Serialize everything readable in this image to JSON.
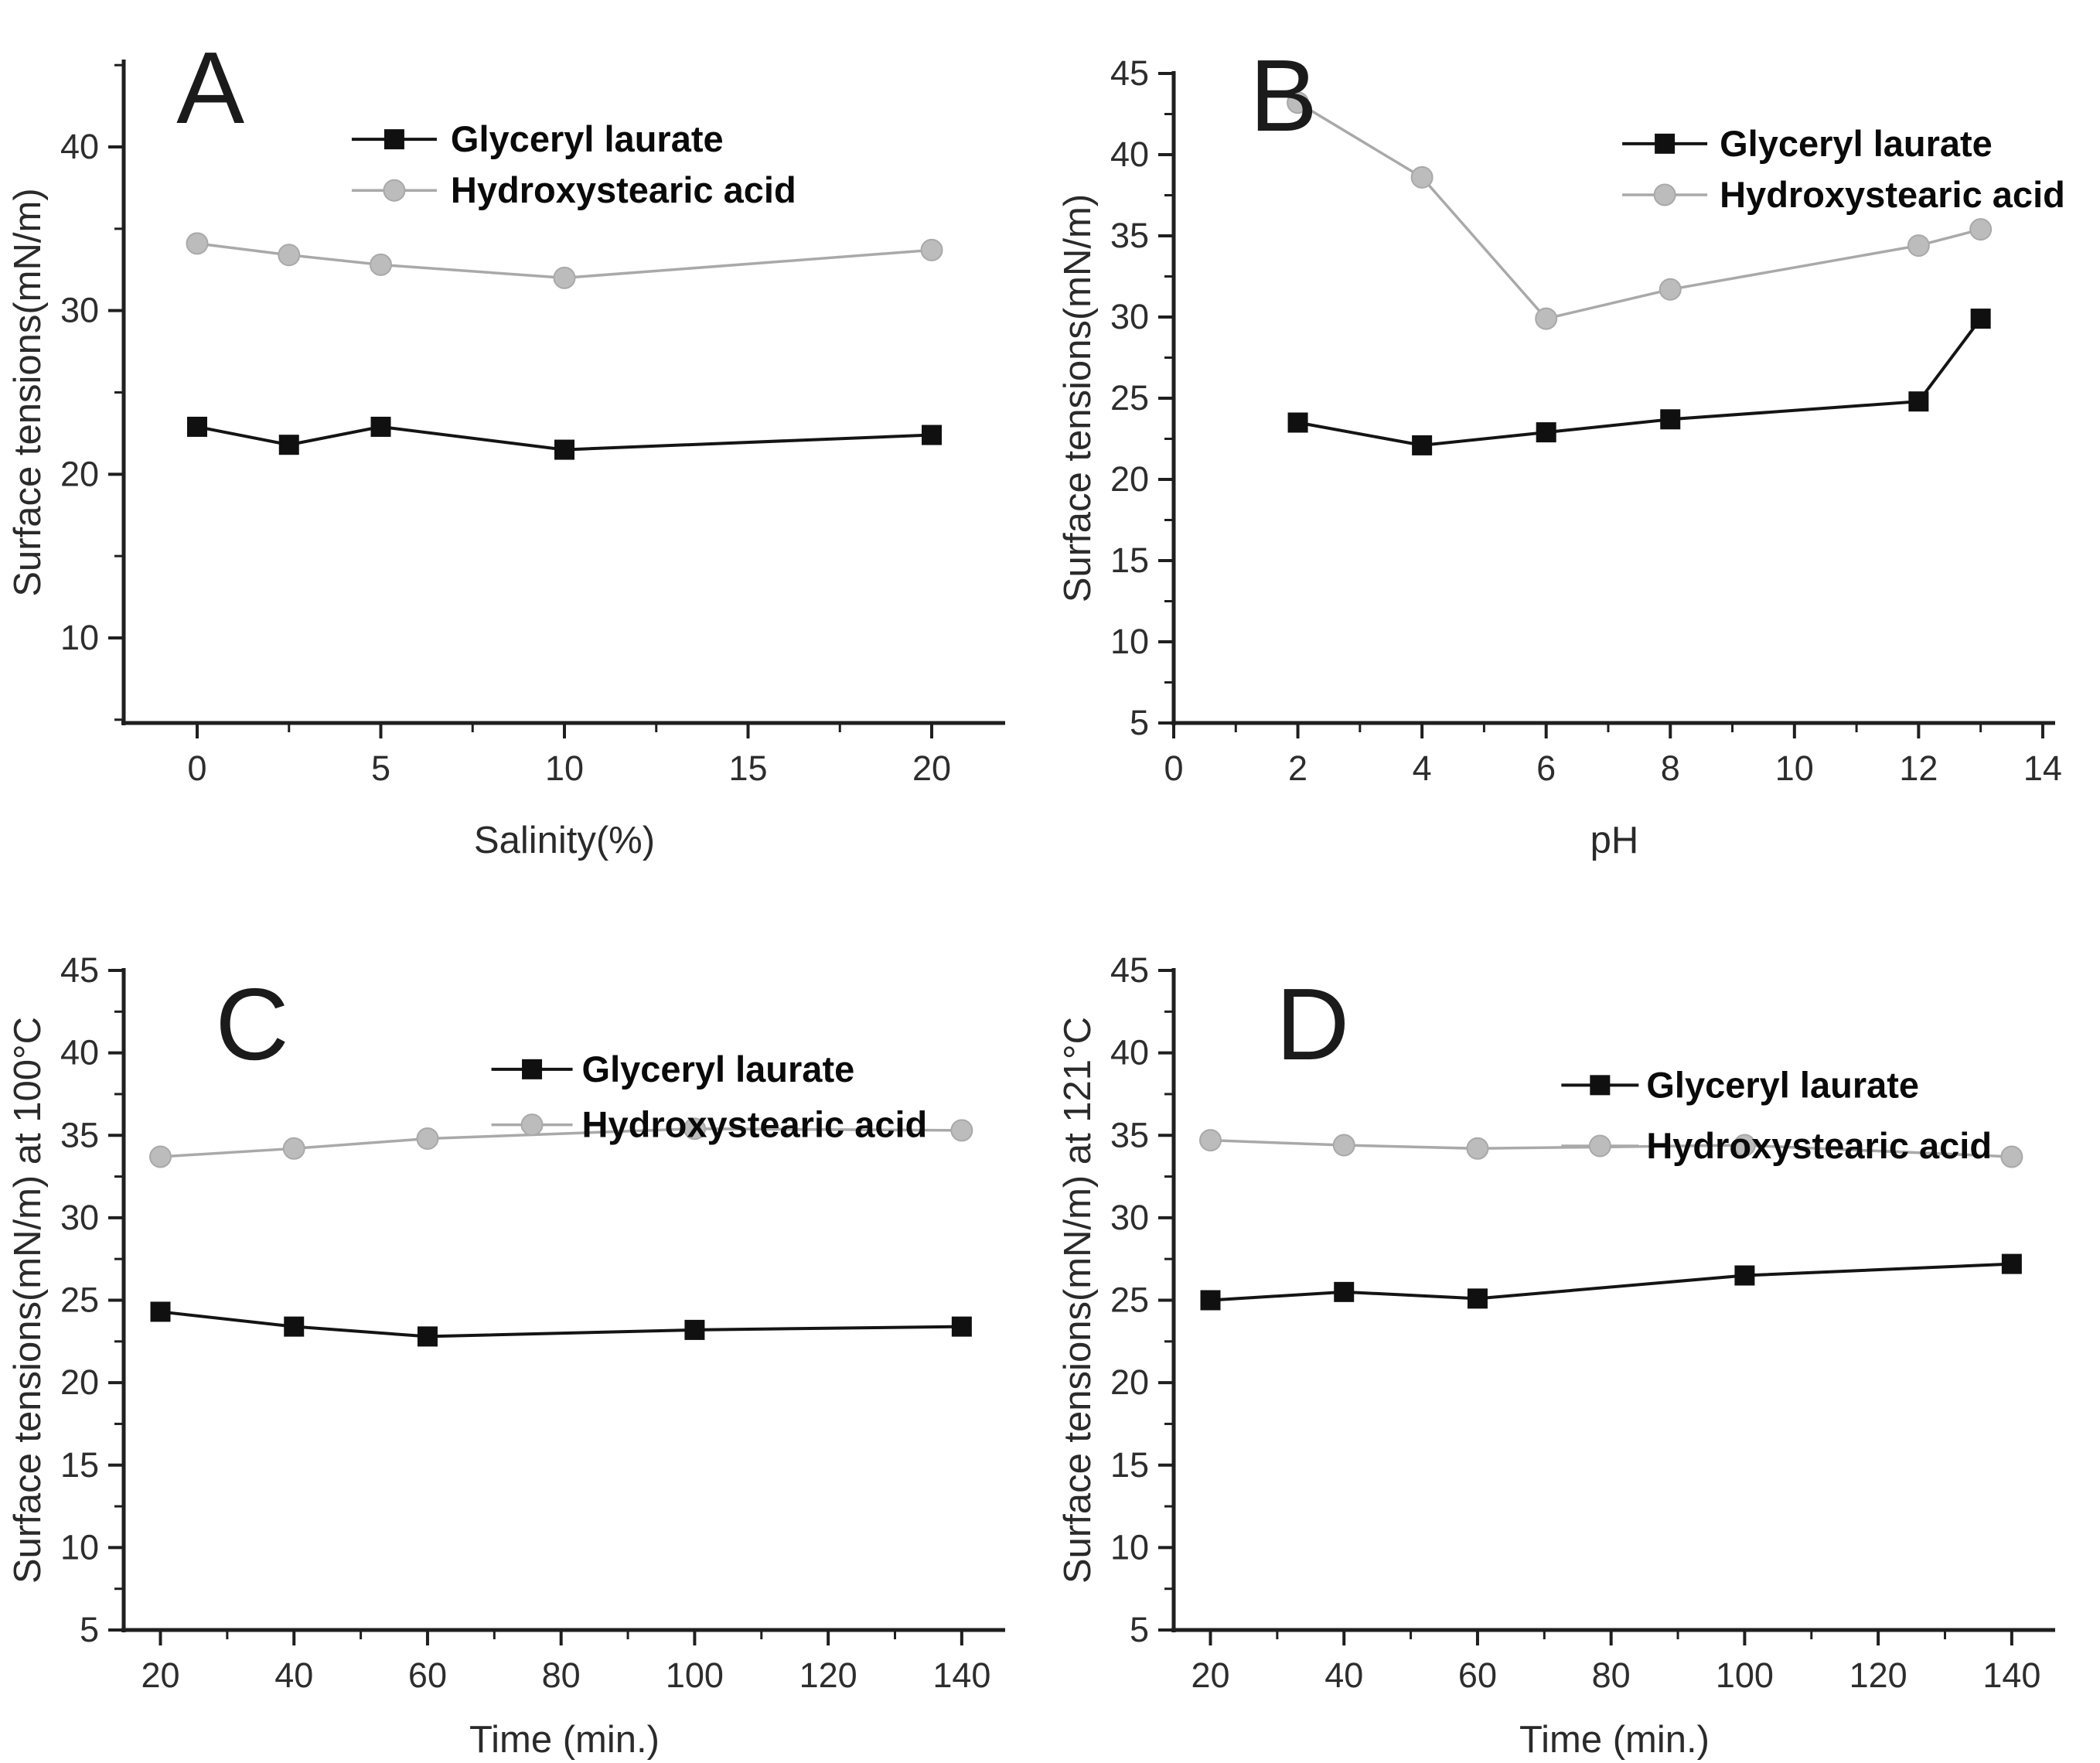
{
  "figure": {
    "background": "#ffffff",
    "panels": [
      "A",
      "B",
      "C",
      "D"
    ]
  },
  "colors": {
    "axis": "#1f1f1f",
    "tick_label": "#2d2d2d",
    "axis_label": "#2a2a2a",
    "legend_text": "#0a0a0a",
    "black_series": "#141414",
    "gray_series_line": "#a9a9a9",
    "gray_series_fill": "#bcbcbc"
  },
  "chart_data": [
    {
      "type": "line",
      "panel_label": "A",
      "xlabel": "Salinity(%)",
      "ylabel": "Surface tensions(mN/m)",
      "xlim": [
        -2,
        22
      ],
      "ylim": [
        4.8,
        45.2
      ],
      "xticks": [
        0,
        5,
        10,
        15,
        20
      ],
      "xticks_minor": [
        2.5,
        7.5,
        12.5,
        17.5
      ],
      "yticks": [
        10,
        20,
        30,
        40
      ],
      "yticks_minor": [
        5,
        15,
        25,
        35,
        45
      ],
      "grid": false,
      "x": [
        0,
        2.5,
        5,
        10,
        20
      ],
      "series": [
        {
          "name": "Glyceryl laurate",
          "marker": "square",
          "line_color": "#141414",
          "marker_fill": "#101010",
          "line_w": 4,
          "values": [
            22.9,
            21.8,
            22.9,
            21.5,
            22.4
          ]
        },
        {
          "name": "Hydroxystearic acid",
          "marker": "circle",
          "line_color": "#a9a9a9",
          "marker_fill": "#bcbcbc",
          "line_w": 3.5,
          "values": [
            34.1,
            33.4,
            32.8,
            32.0,
            33.7
          ]
        }
      ],
      "legend": {
        "x": 0.335,
        "y": 0.158,
        "row_h": 0.058,
        "line_len": 110,
        "text_gap": 18,
        "position": "upper-left-center"
      },
      "letter_pos": [
        0.168,
        0.133
      ],
      "margins": {
        "l": 160,
        "r": 58,
        "t": 80,
        "b": 205
      }
    },
    {
      "type": "line",
      "panel_label": "B",
      "xlabel": "pH",
      "ylabel": "Surface tensions(mN/m)",
      "xlim": [
        0,
        14.2
      ],
      "ylim": [
        5,
        45
      ],
      "xticks": [
        0,
        2,
        4,
        6,
        8,
        10,
        12,
        14
      ],
      "xticks_minor": [
        1,
        3,
        5,
        7,
        9,
        11,
        13
      ],
      "yticks": [
        5,
        10,
        15,
        20,
        25,
        30,
        35,
        40,
        45
      ],
      "yticks_minor": [
        7.5,
        12.5,
        17.5,
        22.5,
        27.5,
        32.5,
        37.5,
        42.5
      ],
      "grid": false,
      "x": [
        2,
        4,
        6,
        8,
        12,
        13
      ],
      "series": [
        {
          "name": "Glyceryl laurate",
          "marker": "square",
          "line_color": "#141414",
          "marker_fill": "#101010",
          "line_w": 4,
          "values": [
            23.5,
            22.1,
            22.9,
            23.7,
            24.8,
            29.9
          ]
        },
        {
          "name": "Hydroxystearic acid",
          "marker": "circle",
          "line_color": "#a9a9a9",
          "marker_fill": "#bcbcbc",
          "line_w": 3.5,
          "values": [
            43.2,
            38.6,
            29.9,
            31.7,
            34.4,
            35.4
          ]
        }
      ],
      "legend": {
        "x": 0.545,
        "y": 0.163,
        "row_h": 0.058,
        "line_len": 110,
        "text_gap": 16,
        "position": "upper-center-right"
      },
      "letter_pos": [
        0.19,
        0.142
      ],
      "margins": {
        "l": 160,
        "r": 58,
        "t": 95,
        "b": 205
      }
    },
    {
      "type": "line",
      "panel_label": "C",
      "xlabel": "Time (min.)",
      "ylabel": "Surface tensions(mN/m) at 100°C",
      "xlim": [
        14.5,
        146.5
      ],
      "ylim": [
        5,
        45
      ],
      "xticks": [
        20,
        40,
        60,
        80,
        100,
        120,
        140
      ],
      "xticks_minor": [
        30,
        50,
        70,
        90,
        110,
        130
      ],
      "yticks": [
        5,
        10,
        15,
        20,
        25,
        30,
        35,
        40,
        45
      ],
      "yticks_minor": [
        7.5,
        12.5,
        17.5,
        22.5,
        27.5,
        32.5,
        37.5,
        42.5
      ],
      "grid": false,
      "x": [
        20,
        40,
        60,
        100,
        140
      ],
      "series": [
        {
          "name": "Glyceryl laurate",
          "marker": "square",
          "line_color": "#141414",
          "marker_fill": "#101010",
          "line_w": 4,
          "values": [
            24.3,
            23.4,
            22.8,
            23.2,
            23.4
          ]
        },
        {
          "name": "Hydroxystearic acid",
          "marker": "circle",
          "line_color": "#a9a9a9",
          "marker_fill": "#bcbcbc",
          "line_w": 3.5,
          "values": [
            33.7,
            34.2,
            34.8,
            35.4,
            35.3
          ]
        }
      ],
      "legend": {
        "x": 0.468,
        "y": 0.213,
        "row_h": 0.063,
        "line_len": 105,
        "text_gap": 12,
        "position": "upper-center-right"
      },
      "letter_pos": [
        0.205,
        0.196
      ],
      "margins": {
        "l": 160,
        "r": 58,
        "t": 115,
        "b": 172
      }
    },
    {
      "type": "line",
      "panel_label": "D",
      "xlabel": "Time (min.)",
      "ylabel": "Surface tensions(mN/m) at 121°C",
      "xlim": [
        14.5,
        146.5
      ],
      "ylim": [
        5,
        45
      ],
      "xticks": [
        20,
        40,
        60,
        80,
        100,
        120,
        140
      ],
      "xticks_minor": [
        30,
        50,
        70,
        90,
        110,
        130
      ],
      "yticks": [
        5,
        10,
        15,
        20,
        25,
        30,
        35,
        40,
        45
      ],
      "yticks_minor": [
        7.5,
        12.5,
        17.5,
        22.5,
        27.5,
        32.5,
        37.5,
        42.5
      ],
      "grid": false,
      "x": [
        20,
        40,
        60,
        100,
        140
      ],
      "series": [
        {
          "name": "Glyceryl laurate",
          "marker": "square",
          "line_color": "#141414",
          "marker_fill": "#101010",
          "line_w": 4,
          "values": [
            25.0,
            25.5,
            25.1,
            26.5,
            27.2
          ]
        },
        {
          "name": "Hydroxystearic acid",
          "marker": "circle",
          "line_color": "#a9a9a9",
          "marker_fill": "#bcbcbc",
          "line_w": 3.5,
          "values": [
            34.7,
            34.4,
            34.2,
            34.4,
            33.7
          ]
        }
      ],
      "legend": {
        "x": 0.487,
        "y": 0.231,
        "row_h": 0.069,
        "line_len": 100,
        "text_gap": 10,
        "position": "upper-center-right"
      },
      "letter_pos": [
        0.215,
        0.196
      ],
      "margins": {
        "l": 160,
        "r": 58,
        "t": 115,
        "b": 172
      }
    }
  ]
}
